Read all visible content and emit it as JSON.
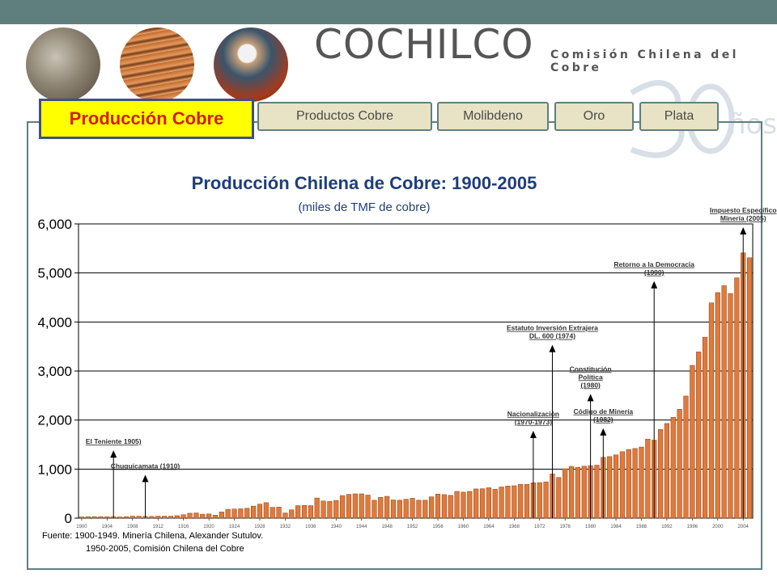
{
  "header": {
    "brand": "COCHILCO",
    "brand_subtitle": "Comisión Chilena del Cobre",
    "photos": [
      "photo-copper-anodes",
      "photo-copper-cathodes",
      "photo-mine-worker"
    ],
    "watermark": "30 años"
  },
  "tabs": {
    "active": "Producción Cobre",
    "others": [
      "Productos Cobre",
      "Molibdeno",
      "Oro",
      "Plata"
    ]
  },
  "colors": {
    "topbar": "#5f7f7f",
    "active_tab_bg": "#ffff00",
    "active_tab_text": "#cc2200",
    "tab_bg": "#e8e3c4",
    "title": "#1f3e7a",
    "bar_fill": "#e07a3a",
    "bar_stroke": "#8a3a10"
  },
  "source": {
    "line1": "Fuente: 1900-1949. Minería Chilena, Alexander Sutulov.",
    "line2": "1950-2005, Comisión Chilena del Cobre"
  },
  "chart_data": {
    "type": "bar",
    "title": "Producción Chilena de Cobre: 1900-2005",
    "subtitle": "(miles de TMF de cobre)",
    "ylim": [
      0,
      6000
    ],
    "y_ticks": [
      0,
      1000,
      2000,
      3000,
      4000,
      5000,
      6000
    ],
    "y_tick_labels": [
      "0",
      "1,000",
      "2,000",
      "3,000",
      "4,000",
      "5,000",
      "6,000"
    ],
    "grid": true,
    "x_start_year": 1900,
    "x_end_year": 2005,
    "x_tick_labels": [
      "1900",
      "1904",
      "1908",
      "1912",
      "1916",
      "1920",
      "1924",
      "1928",
      "1932",
      "1936",
      "1940",
      "1944",
      "1948",
      "1952",
      "1956",
      "1960",
      "1964",
      "1968",
      "1972",
      "1976",
      "1980",
      "1984",
      "1988",
      "1992",
      "1996",
      "2000",
      "2004"
    ],
    "years": [
      1900,
      1901,
      1902,
      1903,
      1904,
      1905,
      1906,
      1907,
      1908,
      1909,
      1910,
      1911,
      1912,
      1913,
      1914,
      1915,
      1916,
      1917,
      1918,
      1919,
      1920,
      1921,
      1922,
      1923,
      1924,
      1925,
      1926,
      1927,
      1928,
      1929,
      1930,
      1931,
      1932,
      1933,
      1934,
      1935,
      1936,
      1937,
      1938,
      1939,
      1940,
      1941,
      1942,
      1943,
      1944,
      1945,
      1946,
      1947,
      1948,
      1949,
      1950,
      1951,
      1952,
      1953,
      1954,
      1955,
      1956,
      1957,
      1958,
      1959,
      1960,
      1961,
      1962,
      1963,
      1964,
      1965,
      1966,
      1967,
      1968,
      1969,
      1970,
      1971,
      1972,
      1973,
      1974,
      1975,
      1976,
      1977,
      1978,
      1979,
      1980,
      1981,
      1982,
      1983,
      1984,
      1985,
      1986,
      1987,
      1988,
      1989,
      1990,
      1991,
      1992,
      1993,
      1994,
      1995,
      1996,
      1997,
      1998,
      1999,
      2000,
      2001,
      2002,
      2003,
      2004,
      2005
    ],
    "values": [
      25,
      30,
      30,
      30,
      30,
      30,
      25,
      30,
      40,
      40,
      35,
      35,
      40,
      40,
      40,
      50,
      70,
      100,
      105,
      80,
      85,
      60,
      125,
      180,
      185,
      190,
      200,
      245,
      285,
      315,
      220,
      225,
      105,
      170,
      255,
      260,
      255,
      410,
      350,
      340,
      360,
      460,
      485,
      495,
      495,
      470,
      365,
      425,
      445,
      370,
      365,
      385,
      405,
      365,
      365,
      435,
      490,
      480,
      465,
      545,
      530,
      545,
      595,
      600,
      620,
      590,
      635,
      655,
      660,
      690,
      690,
      720,
      725,
      740,
      900,
      830,
      1005,
      1055,
      1035,
      1060,
      1070,
      1080,
      1240,
      1255,
      1290,
      1355,
      1400,
      1420,
      1450,
      1610,
      1590,
      1810,
      1930,
      2055,
      2220,
      2490,
      3115,
      3390,
      3690,
      4390,
      4600,
      4740,
      4580,
      4900,
      5410,
      5310
    ],
    "annotations": [
      {
        "label": [
          "El Teniente 1905)"
        ],
        "x": 1905,
        "y_value": 1350
      },
      {
        "label": [
          "Chuquicamata (1910)"
        ],
        "x": 1910,
        "y_value": 850
      },
      {
        "label": [
          "Nacionalización",
          "(1970-1973)"
        ],
        "x": 1971,
        "y_value": 1750
      },
      {
        "label": [
          "Estatuto Inversión Extrajera",
          "DL. 600 (1974)"
        ],
        "x": 1974,
        "y_value": 3500
      },
      {
        "label": [
          "Constitución",
          "Política",
          "(1980)"
        ],
        "x": 1980,
        "y_value": 2500
      },
      {
        "label": [
          "Código de Minería",
          "(1982)"
        ],
        "x": 1982,
        "y_value": 1800
      },
      {
        "label": [
          "Retorno a la Democracia",
          "(1990)"
        ],
        "x": 1990,
        "y_value": 4800
      },
      {
        "label": [
          "Impuesto Específico",
          "Minería (2005)"
        ],
        "x": 2004,
        "y_value": 5900
      }
    ]
  }
}
